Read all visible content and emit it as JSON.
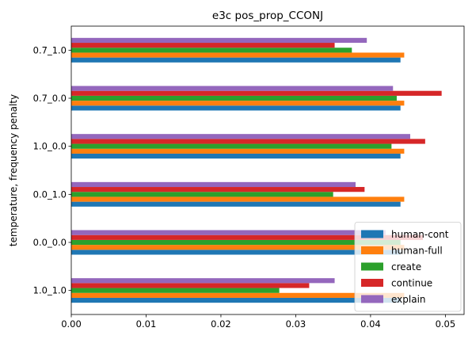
{
  "chart_data": {
    "type": "bar",
    "orientation": "horizontal",
    "title": "e3c pos_prop_CCONJ",
    "xlabel": "",
    "ylabel": "temperature, frequency penalty",
    "categories": [
      "1.0_1.0",
      "0.0_0.0",
      "0.0_1.0",
      "1.0_0.0",
      "0.7_0.0",
      "0.7_1.0"
    ],
    "xlim": [
      0,
      0.0525
    ],
    "xticks": [
      "0.00",
      "0.01",
      "0.02",
      "0.03",
      "0.04",
      "0.05"
    ],
    "legend_position": "lower right",
    "grid": false,
    "series": [
      {
        "name": "human-cont",
        "color": "#1f77b4",
        "values": [
          0.044,
          0.044,
          0.044,
          0.044,
          0.044,
          0.044
        ]
      },
      {
        "name": "human-full",
        "color": "#ff7f0e",
        "values": [
          0.0445,
          0.0445,
          0.0445,
          0.0445,
          0.0445,
          0.0445
        ]
      },
      {
        "name": "create",
        "color": "#2ca02c",
        "values": [
          0.0278,
          0.044,
          0.035,
          0.0428,
          0.0435,
          0.0375
        ]
      },
      {
        "name": "continue",
        "color": "#d62728",
        "values": [
          0.0318,
          0.047,
          0.0392,
          0.0473,
          0.0495,
          0.0352
        ]
      },
      {
        "name": "explain",
        "color": "#9467bd",
        "values": [
          0.0352,
          0.042,
          0.038,
          0.0453,
          0.043,
          0.0395
        ]
      }
    ]
  }
}
